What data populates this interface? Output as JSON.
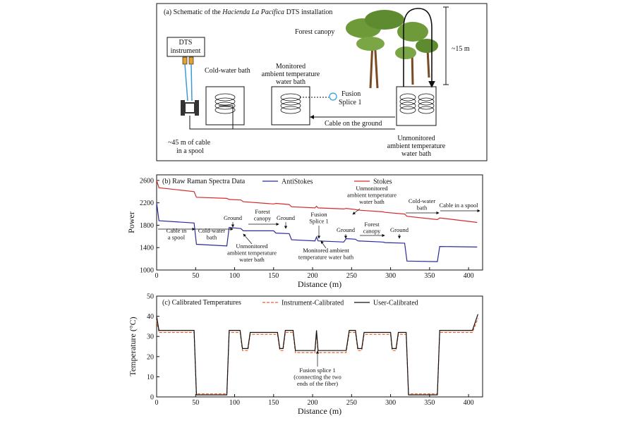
{
  "schematic": {
    "title_prefix": "(a) Schematic of the ",
    "title_italic": "Hacienda La Pacífica",
    "title_suffix": " DTS installation",
    "dts_instrument": [
      "DTS",
      "instrument"
    ],
    "cold_bath": "Cold-water bath",
    "monitored_bath": [
      "Monitored",
      "ambient temperature",
      "water bath"
    ],
    "fusion_splice": [
      "Fusion",
      "Splice 1"
    ],
    "forest_canopy": "Forest canopy",
    "height": "~15 m",
    "cable_ground": "Cable on the ground",
    "cable_spool": [
      "~45 m of cable",
      "in a spool"
    ],
    "unmonitored_bath": [
      "Unmonitored",
      "ambient temperature",
      "water bath"
    ]
  },
  "chart_data": [
    {
      "type": "line",
      "title": "(b) Raw Raman Spectra Data",
      "x_label": "Distance (m)",
      "y_label": "Power",
      "x": [
        0,
        3,
        48,
        51,
        90,
        93,
        108,
        111,
        150,
        153,
        170,
        173,
        203,
        205,
        207,
        240,
        243,
        255,
        258,
        290,
        293,
        318,
        321,
        360,
        363,
        411
      ],
      "series": [
        {
          "name": "AntiStokes",
          "color": "#2b2b9a",
          "style": "solid",
          "values": [
            2200,
            1880,
            1840,
            1460,
            1430,
            1760,
            1740,
            1700,
            1700,
            1660,
            1650,
            1540,
            1520,
            1590,
            1520,
            1500,
            1560,
            1550,
            1520,
            1500,
            1490,
            1480,
            1160,
            1150,
            1420,
            1410
          ]
        },
        {
          "name": "Stokes",
          "color": "#d42a2a",
          "style": "solid",
          "values": [
            2600,
            2470,
            2400,
            2300,
            2280,
            2260,
            2250,
            2220,
            2180,
            2190,
            2170,
            2130,
            2110,
            2140,
            2110,
            2090,
            2100,
            2080,
            2070,
            2040,
            2030,
            2000,
            1960,
            1900,
            1930,
            1850
          ]
        }
      ],
      "xlim": [
        0,
        418
      ],
      "xticks": [
        0,
        50,
        100,
        150,
        200,
        250,
        300,
        350,
        400
      ],
      "ylim": [
        1000,
        2700
      ],
      "yticks": [
        1000,
        1400,
        1800,
        2200,
        2600
      ],
      "annotations": [
        {
          "lines": [
            "Cable in",
            "a spool"
          ]
        },
        {
          "lines": [
            "Cold-water",
            "bath"
          ]
        },
        {
          "lines": [
            "Ground"
          ]
        },
        {
          "lines": [
            "Forest",
            "canopy"
          ]
        },
        {
          "lines": [
            "Ground"
          ]
        },
        {
          "lines": [
            "Fusion",
            "Splice 1"
          ]
        },
        {
          "lines": [
            "Ground"
          ]
        },
        {
          "lines": [
            "Forest",
            "canopy"
          ]
        },
        {
          "lines": [
            "Ground"
          ]
        },
        {
          "lines": [
            "Unmonitored",
            "ambient temperature",
            "water bath"
          ]
        },
        {
          "lines": [
            "Cold-water",
            "bath"
          ]
        },
        {
          "lines": [
            "Cable in a spool"
          ]
        },
        {
          "lines": [
            "Unmonitored",
            "ambient temperature",
            "water bath"
          ]
        },
        {
          "lines": [
            "Monitored ambient",
            "temperature water bath"
          ]
        }
      ]
    },
    {
      "type": "line",
      "title": "(c) Calibrated Temperatures",
      "x_label": "Distance (m)",
      "y_label": "Temperature (°C)",
      "x": [
        0,
        3,
        48,
        51,
        90,
        93,
        107,
        110,
        117,
        120,
        155,
        158,
        162,
        165,
        175,
        178,
        203,
        205,
        207,
        243,
        247,
        255,
        258,
        263,
        266,
        300,
        302,
        307,
        310,
        320,
        323,
        360,
        363,
        405,
        412
      ],
      "series": [
        {
          "name": "Instrument-Calibrated",
          "color": "#e8622a",
          "style": "dashed",
          "values": [
            38,
            32,
            32,
            1.5,
            1.5,
            32,
            32,
            23,
            23,
            31,
            31,
            23,
            23,
            32,
            32,
            22,
            22,
            32,
            22,
            22,
            32,
            32,
            23,
            23,
            31,
            31,
            23,
            23,
            31,
            31,
            1.5,
            1.5,
            32,
            32,
            39
          ]
        },
        {
          "name": "User-Calibrated",
          "color": "#111111",
          "style": "solid",
          "values": [
            40,
            33,
            33,
            1,
            1,
            33,
            33,
            24,
            24,
            32,
            32,
            24,
            24,
            33,
            33,
            23,
            23,
            33,
            23,
            23,
            33,
            33,
            24,
            24,
            32,
            32,
            24,
            24,
            32,
            32,
            1,
            1,
            33,
            33,
            41
          ]
        }
      ],
      "xlim": [
        0,
        418
      ],
      "xticks": [
        0,
        50,
        100,
        150,
        200,
        250,
        300,
        350,
        400
      ],
      "ylim": [
        0,
        50
      ],
      "yticks": [
        0,
        10,
        20,
        30,
        40,
        50
      ],
      "annotations": [
        {
          "lines": [
            "Fusion splice 1",
            "(connecting the two",
            "ends of the fiber)"
          ]
        }
      ]
    }
  ]
}
